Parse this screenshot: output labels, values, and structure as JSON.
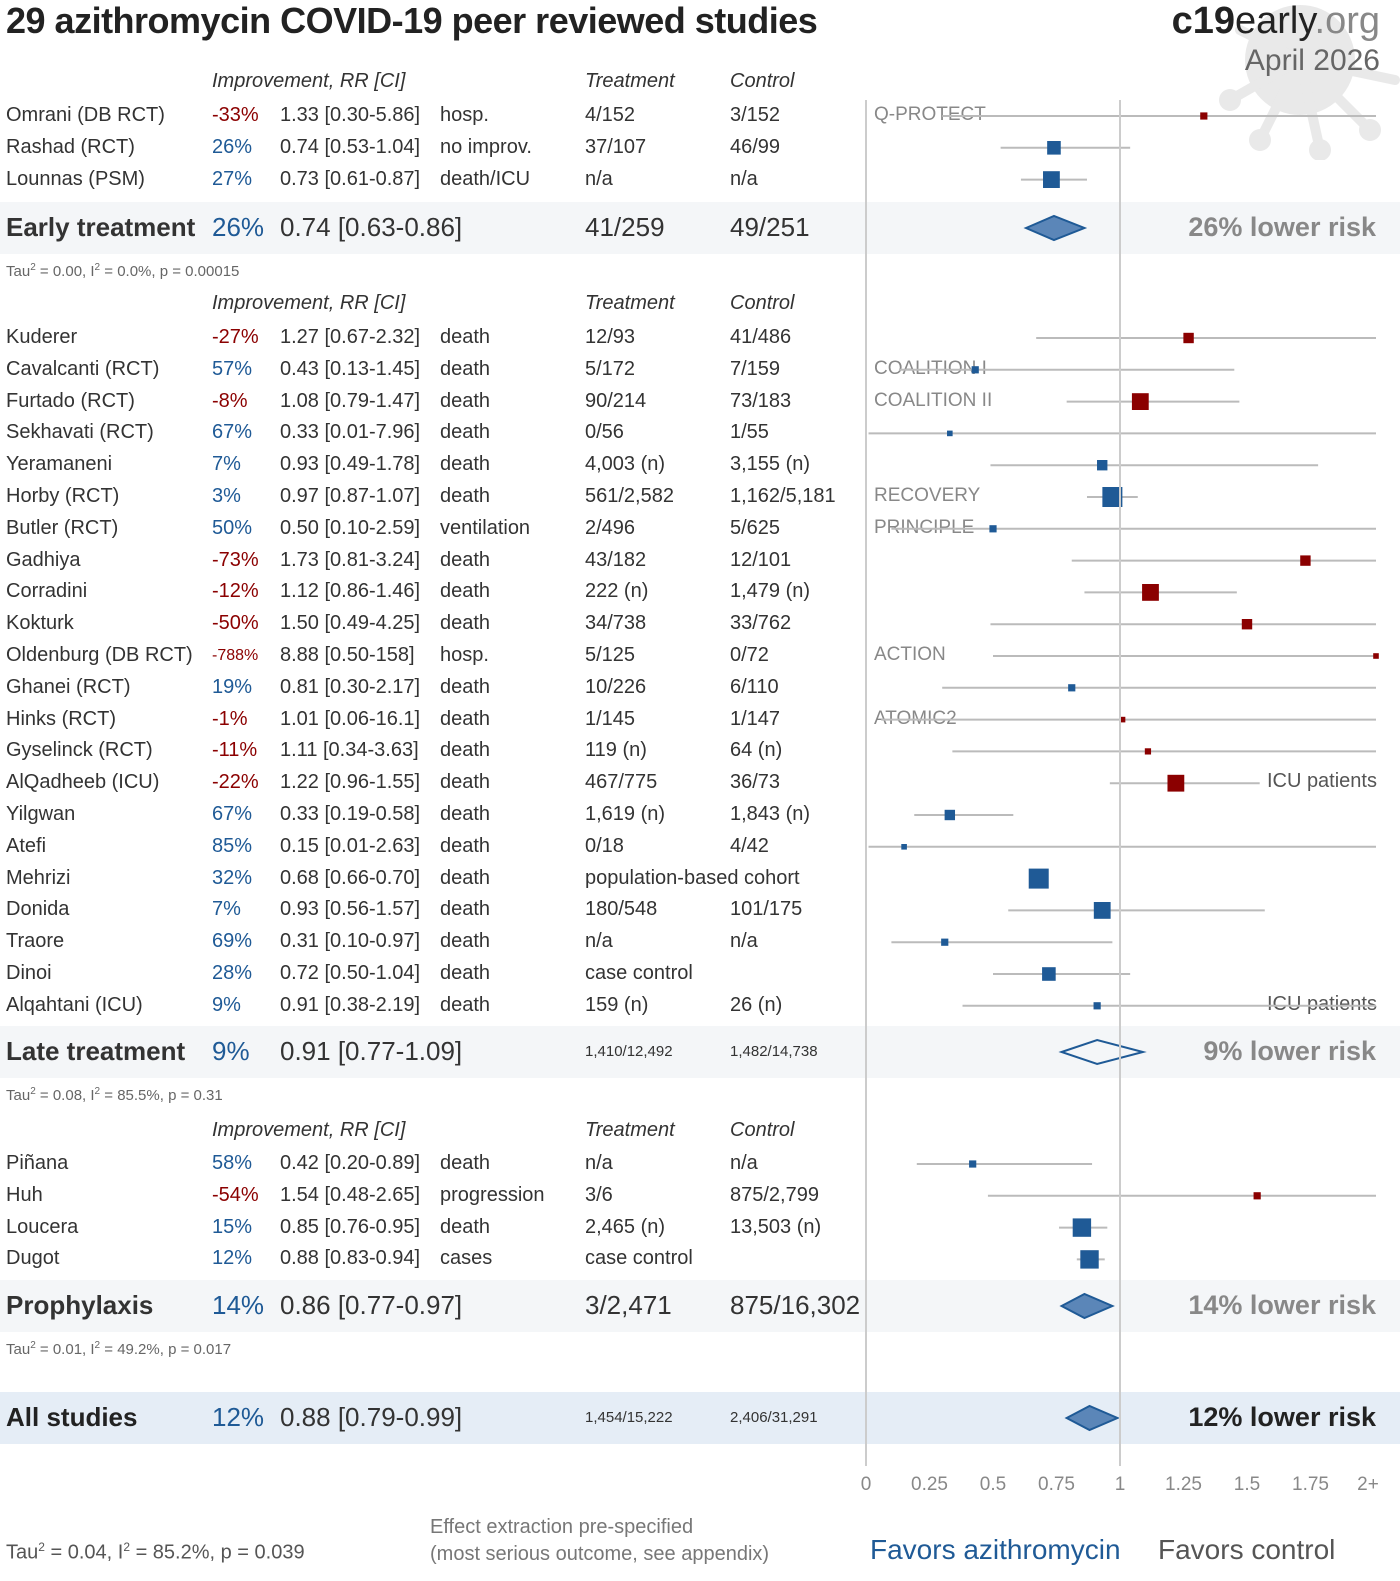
{
  "title": "29 azithromycin COVID-19 peer reviewed studies",
  "brand": {
    "part1": "c19",
    "part2": "early",
    "part3": ".org"
  },
  "date": "April 2026",
  "headers": {
    "improvement": "Improvement, RR [CI]",
    "treatment": "Treatment",
    "control": "Control"
  },
  "colors": {
    "benefit": "#1f5a96",
    "harm": "#8b0000",
    "ci_line": "#bbbbbb",
    "diamond_fill": "#5b86b8",
    "band": "#f4f6f8",
    "all_band": "#e5edf6"
  },
  "chart_data": {
    "type": "forest",
    "title": "29 azithromycin COVID-19 peer reviewed studies",
    "xlabel_left": "Favors azithromycin",
    "xlabel_right": "Favors control",
    "x_ticks": [
      "0",
      "0.25",
      "0.5",
      "0.75",
      "1",
      "1.25",
      "1.5",
      "1.75",
      "2+"
    ],
    "xlim": [
      0,
      2
    ],
    "reference_line": 1,
    "groups": [
      {
        "name": "Early treatment",
        "studies": [
          {
            "name": "Omrani (DB RCT)",
            "improvement": "-33%",
            "rr": 1.33,
            "ci": [
              0.3,
              5.86
            ],
            "rr_text": "1.33 [0.30-5.86]",
            "outcome": "hosp.",
            "treatment": "4/152",
            "control": "3/152",
            "trial": "Q-PROTECT",
            "weight": 1
          },
          {
            "name": "Rashad (RCT)",
            "improvement": "26%",
            "rr": 0.74,
            "ci": [
              0.53,
              1.04
            ],
            "rr_text": "0.74 [0.53-1.04]",
            "outcome": "no improv.",
            "treatment": "37/107",
            "control": "46/99",
            "trial": "",
            "weight": 3
          },
          {
            "name": "Lounnas (PSM)",
            "improvement": "27%",
            "rr": 0.73,
            "ci": [
              0.61,
              0.87
            ],
            "rr_text": "0.73 [0.61-0.87]",
            "outcome": "death/ICU",
            "treatment": "n/a",
            "control": "n/a",
            "trial": "",
            "weight": 4
          }
        ],
        "summary": {
          "improvement": "26%",
          "rr": 0.74,
          "ci": [
            0.63,
            0.86
          ],
          "rr_text": "0.74 [0.63-0.86]",
          "treatment": "41/259",
          "control": "49/251",
          "label": "26% lower risk",
          "significant": true
        },
        "stats": {
          "tau2": "0.00",
          "i2": "0.0%",
          "p": "0.00015"
        }
      },
      {
        "name": "Late treatment",
        "studies": [
          {
            "name": "Kuderer",
            "improvement": "-27%",
            "rr": 1.27,
            "ci": [
              0.67,
              2.32
            ],
            "rr_text": "1.27 [0.67-2.32]",
            "outcome": "death",
            "treatment": "12/93",
            "control": "41/486",
            "trial": "",
            "weight": 2
          },
          {
            "name": "Cavalcanti (RCT)",
            "improvement": "57%",
            "rr": 0.43,
            "ci": [
              0.13,
              1.45
            ],
            "rr_text": "0.43 [0.13-1.45]",
            "outcome": "death",
            "treatment": "5/172",
            "control": "7/159",
            "trial": "COALITION I",
            "weight": 1
          },
          {
            "name": "Furtado (RCT)",
            "improvement": "-8%",
            "rr": 1.08,
            "ci": [
              0.79,
              1.47
            ],
            "rr_text": "1.08 [0.79-1.47]",
            "outcome": "death",
            "treatment": "90/214",
            "control": "73/183",
            "trial": "COALITION II",
            "weight": 4
          },
          {
            "name": "Sekhavati (RCT)",
            "improvement": "67%",
            "rr": 0.33,
            "ci": [
              0.01,
              7.96
            ],
            "rr_text": "0.33 [0.01-7.96]",
            "outcome": "death",
            "treatment": "0/56",
            "control": "1/55",
            "trial": "",
            "weight": 0.5
          },
          {
            "name": "Yeramaneni",
            "improvement": "7%",
            "rr": 0.93,
            "ci": [
              0.49,
              1.78
            ],
            "rr_text": "0.93 [0.49-1.78]",
            "outcome": "death",
            "treatment": "4,003 (n)",
            "control": "3,155 (n)",
            "trial": "",
            "weight": 2
          },
          {
            "name": "Horby (RCT)",
            "improvement": "3%",
            "rr": 0.97,
            "ci": [
              0.87,
              1.07
            ],
            "rr_text": "0.97 [0.87-1.07]",
            "outcome": "death",
            "treatment": "561/2,582",
            "control": "1,162/5,181",
            "trial": "RECOVERY",
            "weight": 5
          },
          {
            "name": "Butler (RCT)",
            "improvement": "50%",
            "rr": 0.5,
            "ci": [
              0.1,
              2.59
            ],
            "rr_text": "0.50 [0.10-2.59]",
            "outcome": "ventilation",
            "treatment": "2/496",
            "control": "5/625",
            "trial": "PRINCIPLE",
            "weight": 1
          },
          {
            "name": "Gadhiya",
            "improvement": "-73%",
            "rr": 1.73,
            "ci": [
              0.81,
              3.24
            ],
            "rr_text": "1.73 [0.81-3.24]",
            "outcome": "death",
            "treatment": "43/182",
            "control": "12/101",
            "trial": "",
            "weight": 2
          },
          {
            "name": "Corradini",
            "improvement": "-12%",
            "rr": 1.12,
            "ci": [
              0.86,
              1.46
            ],
            "rr_text": "1.12 [0.86-1.46]",
            "outcome": "death",
            "treatment": "222 (n)",
            "control": "1,479 (n)",
            "trial": "",
            "weight": 4
          },
          {
            "name": "Kokturk",
            "improvement": "-50%",
            "rr": 1.5,
            "ci": [
              0.49,
              4.25
            ],
            "rr_text": "1.50 [0.49-4.25]",
            "outcome": "death",
            "treatment": "34/738",
            "control": "33/762",
            "trial": "",
            "weight": 2
          },
          {
            "name": "Oldenburg (DB RCT)",
            "improvement": "-788%",
            "rr": 8.88,
            "ci": [
              0.5,
              158
            ],
            "rr_text": "8.88 [0.50-158]",
            "outcome": "hosp.",
            "treatment": "5/125",
            "control": "0/72",
            "trial": "ACTION",
            "weight": 0.5
          },
          {
            "name": "Ghanei (RCT)",
            "improvement": "19%",
            "rr": 0.81,
            "ci": [
              0.3,
              2.17
            ],
            "rr_text": "0.81 [0.30-2.17]",
            "outcome": "death",
            "treatment": "10/226",
            "control": "6/110",
            "trial": "",
            "weight": 1
          },
          {
            "name": "Hinks (RCT)",
            "improvement": "-1%",
            "rr": 1.01,
            "ci": [
              0.06,
              16.1
            ],
            "rr_text": "1.01 [0.06-16.1]",
            "outcome": "death",
            "treatment": "1/145",
            "control": "1/147",
            "trial": "ATOMIC2",
            "weight": 0.5
          },
          {
            "name": "Gyselinck (RCT)",
            "improvement": "-11%",
            "rr": 1.11,
            "ci": [
              0.34,
              3.63
            ],
            "rr_text": "1.11 [0.34-3.63]",
            "outcome": "death",
            "treatment": "119 (n)",
            "control": "64 (n)",
            "trial": "",
            "weight": 0.7
          },
          {
            "name": "AlQadheeb (ICU)",
            "improvement": "-22%",
            "rr": 1.22,
            "ci": [
              0.96,
              1.55
            ],
            "rr_text": "1.22 [0.96-1.55]",
            "outcome": "death",
            "treatment": "467/775",
            "control": "36/73",
            "trial": "",
            "note": "ICU patients",
            "weight": 4
          },
          {
            "name": "Yilgwan",
            "improvement": "67%",
            "rr": 0.33,
            "ci": [
              0.19,
              0.58
            ],
            "rr_text": "0.33 [0.19-0.58]",
            "outcome": "death",
            "treatment": "1,619 (n)",
            "control": "1,843 (n)",
            "trial": "",
            "weight": 2
          },
          {
            "name": "Atefi",
            "improvement": "85%",
            "rr": 0.15,
            "ci": [
              0.01,
              2.63
            ],
            "rr_text": "0.15 [0.01-2.63]",
            "outcome": "death",
            "treatment": "0/18",
            "control": "4/42",
            "trial": "",
            "weight": 0.5
          },
          {
            "name": "Mehrizi",
            "improvement": "32%",
            "rr": 0.68,
            "ci": [
              0.66,
              0.7
            ],
            "rr_text": "0.68 [0.66-0.70]",
            "outcome": "death",
            "treatment": "population-based cohort",
            "control": "",
            "trial": "",
            "weight": 5
          },
          {
            "name": "Donida",
            "improvement": "7%",
            "rr": 0.93,
            "ci": [
              0.56,
              1.57
            ],
            "rr_text": "0.93 [0.56-1.57]",
            "outcome": "death",
            "treatment": "180/548",
            "control": "101/175",
            "trial": "",
            "weight": 4
          },
          {
            "name": "Traore",
            "improvement": "69%",
            "rr": 0.31,
            "ci": [
              0.1,
              0.97
            ],
            "rr_text": "0.31 [0.10-0.97]",
            "outcome": "death",
            "treatment": "n/a",
            "control": "n/a",
            "trial": "",
            "weight": 1
          },
          {
            "name": "Dinoi",
            "improvement": "28%",
            "rr": 0.72,
            "ci": [
              0.5,
              1.04
            ],
            "rr_text": "0.72 [0.50-1.04]",
            "outcome": "death",
            "treatment": "case control",
            "control": "",
            "trial": "",
            "weight": 3
          },
          {
            "name": "Alqahtani (ICU)",
            "improvement": "9%",
            "rr": 0.91,
            "ci": [
              0.38,
              2.19
            ],
            "rr_text": "0.91 [0.38-2.19]",
            "outcome": "death",
            "treatment": "159 (n)",
            "control": "26 (n)",
            "trial": "",
            "note": "ICU patients",
            "weight": 1
          }
        ],
        "summary": {
          "improvement": "9%",
          "rr": 0.91,
          "ci": [
            0.77,
            1.09
          ],
          "rr_text": "0.91 [0.77-1.09]",
          "treatment": "1,410/12,492",
          "control": "1,482/14,738",
          "label": "9% lower risk",
          "significant": false
        },
        "stats": {
          "tau2": "0.08",
          "i2": "85.5%",
          "p": "0.31"
        }
      },
      {
        "name": "Prophylaxis",
        "studies": [
          {
            "name": "Piñana",
            "improvement": "58%",
            "rr": 0.42,
            "ci": [
              0.2,
              0.89
            ],
            "rr_text": "0.42 [0.20-0.89]",
            "outcome": "death",
            "treatment": "n/a",
            "control": "n/a",
            "trial": "",
            "weight": 1
          },
          {
            "name": "Huh",
            "improvement": "-54%",
            "rr": 1.54,
            "ci": [
              0.48,
              2.65
            ],
            "rr_text": "1.54 [0.48-2.65]",
            "outcome": "progression",
            "treatment": "3/6",
            "control": "875/2,799",
            "trial": "",
            "weight": 1
          },
          {
            "name": "Loucera",
            "improvement": "15%",
            "rr": 0.85,
            "ci": [
              0.76,
              0.95
            ],
            "rr_text": "0.85 [0.76-0.95]",
            "outcome": "death",
            "treatment": "2,465 (n)",
            "control": "13,503 (n)",
            "trial": "",
            "weight": 4.5
          },
          {
            "name": "Dugot",
            "improvement": "12%",
            "rr": 0.88,
            "ci": [
              0.83,
              0.94
            ],
            "rr_text": "0.88 [0.83-0.94]",
            "outcome": "cases",
            "treatment": "case control",
            "control": "",
            "trial": "",
            "weight": 4.5
          }
        ],
        "summary": {
          "improvement": "14%",
          "rr": 0.86,
          "ci": [
            0.77,
            0.97
          ],
          "rr_text": "0.86 [0.77-0.97]",
          "treatment": "3/2,471",
          "control": "875/16,302",
          "label": "14% lower risk",
          "significant": true
        },
        "stats": {
          "tau2": "0.01",
          "i2": "49.2%",
          "p": "0.017"
        }
      }
    ],
    "overall": {
      "name": "All studies",
      "improvement": "12%",
      "rr": 0.88,
      "ci": [
        0.79,
        0.99
      ],
      "rr_text": "0.88 [0.79-0.99]",
      "treatment": "1,454/15,222",
      "control": "2,406/31,291",
      "label": "12% lower risk",
      "significant": true
    },
    "overall_stats": {
      "tau2": "0.04",
      "i2": "85.2%",
      "p": "0.039"
    }
  },
  "footer": {
    "extraction_line1": "Effect extraction pre-specified",
    "extraction_line2": "(most serious outcome, see appendix)"
  }
}
